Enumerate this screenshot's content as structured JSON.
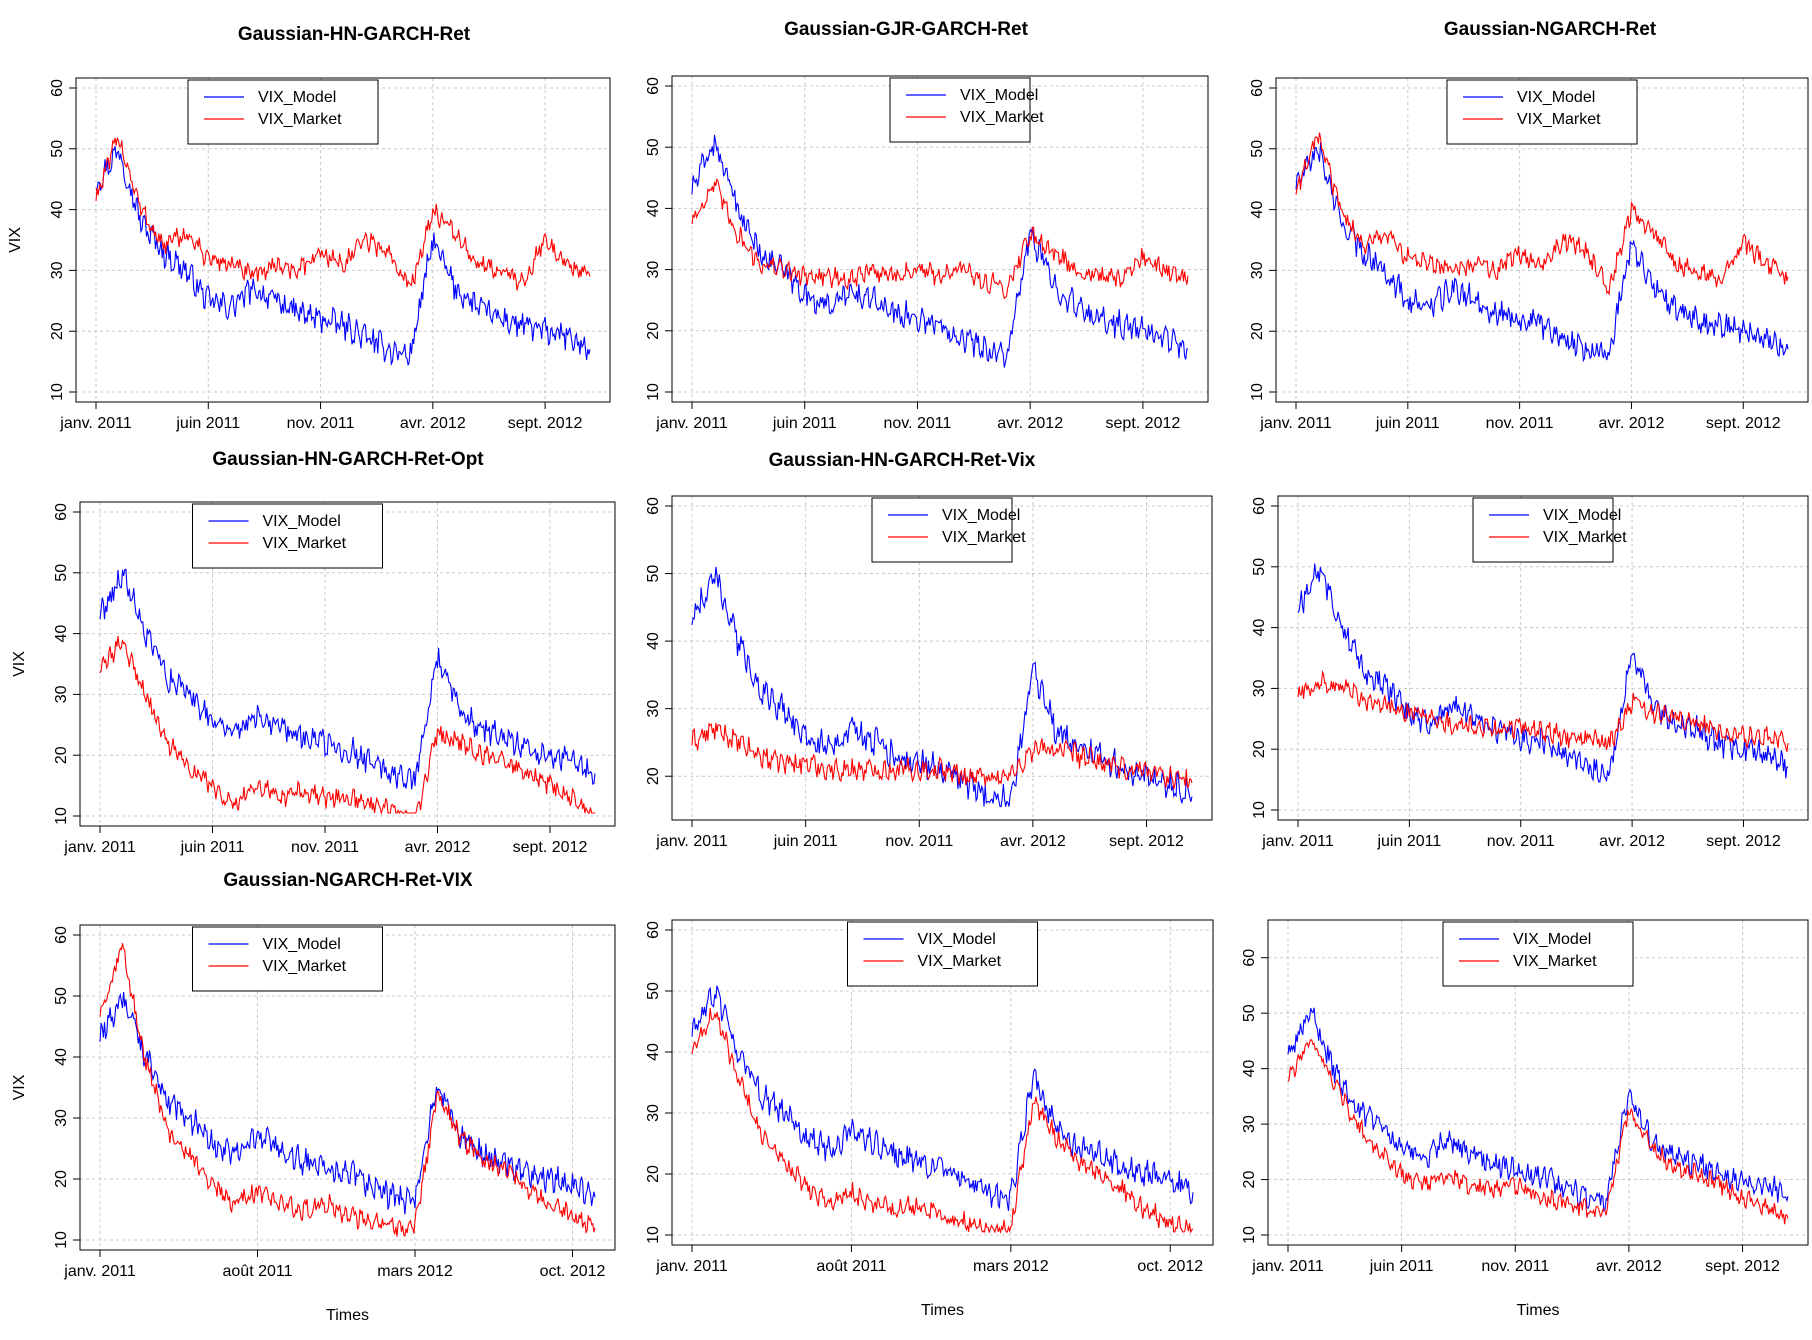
{
  "colors": {
    "model": "#0000ff",
    "market": "#ff0000",
    "grid": "#c8c8c8",
    "axis": "#000000"
  },
  "legend_labels": [
    "VIX_Model",
    "VIX_Market"
  ],
  "chart_data": [
    {
      "type": "line",
      "title": "Gaussian-HN-GARCH-Ret",
      "ylabel": "VIX",
      "xlabel": "",
      "ylim": [
        10,
        60
      ],
      "yticks": [
        10,
        20,
        30,
        40,
        50,
        60
      ],
      "xticks": [
        "janv. 2011",
        "juin 2011",
        "nov. 2011",
        "avr. 2012",
        "sept. 2012"
      ],
      "legend": "top-center",
      "grid": true,
      "x": [
        "janv. 2011",
        "févr. 2011",
        "mars 2011",
        "avr. 2011",
        "mai 2011",
        "juin 2011",
        "juil. 2011",
        "août 2011",
        "sept. 2011",
        "oct. 2011",
        "nov. 2011",
        "déc. 2011",
        "janv. 2012",
        "févr. 2012",
        "mars 2012",
        "avr. 2012",
        "mai 2012",
        "juin 2012",
        "juil. 2012",
        "août 2012",
        "sept. 2012",
        "oct. 2012",
        "nov. 2012"
      ],
      "series": [
        {
          "name": "VIX_Model",
          "values": [
            44,
            50,
            38,
            33,
            30,
            25,
            24,
            27,
            25,
            23,
            22,
            21,
            19,
            17,
            16,
            35,
            27,
            24,
            22,
            21,
            20,
            19,
            17
          ]
        },
        {
          "name": "VIX_Market",
          "values": [
            42,
            52,
            40,
            34,
            36,
            32,
            31,
            29,
            31,
            30,
            33,
            31,
            35,
            33,
            27,
            40,
            36,
            31,
            30,
            28,
            35,
            31,
            29
          ]
        }
      ]
    },
    {
      "type": "line",
      "title": "Gaussian-GJR-GARCH-Ret",
      "ylabel": "",
      "xlabel": "",
      "ylim": [
        10,
        60
      ],
      "yticks": [
        10,
        20,
        30,
        40,
        50,
        60
      ],
      "xticks": [
        "janv. 2011",
        "juin 2011",
        "nov. 2011",
        "avr. 2012",
        "sept. 2012"
      ],
      "legend": "top-center",
      "grid": true,
      "x": [
        "janv. 2011",
        "févr. 2011",
        "mars 2011",
        "avr. 2011",
        "mai 2011",
        "juin 2011",
        "juil. 2011",
        "août 2011",
        "sept. 2011",
        "oct. 2011",
        "nov. 2011",
        "déc. 2011",
        "janv. 2012",
        "févr. 2012",
        "mars 2012",
        "avr. 2012",
        "mai 2012",
        "juin 2012",
        "juil. 2012",
        "août 2012",
        "sept. 2012",
        "oct. 2012",
        "nov. 2012"
      ],
      "series": [
        {
          "name": "VIX_Model",
          "values": [
            43,
            51,
            40,
            33,
            30,
            26,
            24,
            26,
            25,
            23,
            22,
            21,
            19,
            17,
            16,
            36,
            28,
            24,
            22,
            21,
            20,
            19,
            17
          ]
        },
        {
          "name": "VIX_Market",
          "values": [
            38,
            44,
            36,
            31,
            30,
            29,
            29,
            28,
            30,
            29,
            30,
            29,
            30,
            28,
            27,
            36,
            33,
            30,
            29,
            28,
            32,
            30,
            29
          ]
        }
      ]
    },
    {
      "type": "line",
      "title": "Gaussian-NGARCH-Ret",
      "ylabel": "",
      "xlabel": "",
      "ylim": [
        10,
        60
      ],
      "yticks": [
        10,
        20,
        30,
        40,
        50,
        60
      ],
      "xticks": [
        "janv. 2011",
        "juin 2011",
        "nov. 2011",
        "avr. 2012",
        "sept. 2012"
      ],
      "legend": "top-center",
      "grid": true,
      "x": [
        "janv. 2011",
        "févr. 2011",
        "mars 2011",
        "avr. 2011",
        "mai 2011",
        "juin 2011",
        "juil. 2011",
        "août 2011",
        "sept. 2011",
        "oct. 2011",
        "nov. 2011",
        "déc. 2011",
        "janv. 2012",
        "févr. 2012",
        "mars 2012",
        "avr. 2012",
        "mai 2012",
        "juin 2012",
        "juil. 2012",
        "août 2012",
        "sept. 2012",
        "oct. 2012",
        "nov. 2012"
      ],
      "series": [
        {
          "name": "VIX_Model",
          "values": [
            44,
            50,
            38,
            33,
            30,
            25,
            24,
            27,
            25,
            23,
            22,
            21,
            19,
            17,
            16,
            35,
            27,
            24,
            22,
            21,
            20,
            19,
            17
          ]
        },
        {
          "name": "VIX_Market",
          "values": [
            43,
            52,
            40,
            34,
            36,
            32,
            31,
            30,
            31,
            30,
            33,
            31,
            35,
            33,
            27,
            40,
            36,
            31,
            30,
            28,
            35,
            31,
            29
          ]
        }
      ]
    },
    {
      "type": "line",
      "title": "Gaussian-HN-GARCH-Ret-Opt",
      "ylabel": "VIX",
      "xlabel": "",
      "ylim": [
        10,
        60
      ],
      "yticks": [
        10,
        20,
        30,
        40,
        50,
        60
      ],
      "xticks": [
        "janv. 2011",
        "juin 2011",
        "nov. 2011",
        "avr. 2012",
        "sept. 2012"
      ],
      "legend": "top-center",
      "grid": true,
      "x": [
        "janv. 2011",
        "févr. 2011",
        "mars 2011",
        "avr. 2011",
        "mai 2011",
        "juin 2011",
        "juil. 2011",
        "août 2011",
        "sept. 2011",
        "oct. 2011",
        "nov. 2011",
        "déc. 2011",
        "janv. 2012",
        "févr. 2012",
        "mars 2012",
        "avr. 2012",
        "mai 2012",
        "juin 2012",
        "juil. 2012",
        "août 2012",
        "sept. 2012",
        "oct. 2012",
        "nov. 2012"
      ],
      "series": [
        {
          "name": "VIX_Model",
          "values": [
            43,
            50,
            40,
            33,
            30,
            26,
            24,
            27,
            25,
            23,
            22,
            21,
            19,
            17,
            16,
            36,
            27,
            24,
            23,
            21,
            20,
            19,
            17
          ]
        },
        {
          "name": "VIX_Market",
          "values": [
            34,
            39,
            30,
            22,
            18,
            15,
            12,
            15,
            13,
            14,
            13,
            13,
            12,
            11,
            9,
            24,
            22,
            20,
            19,
            17,
            15,
            13,
            10
          ]
        }
      ]
    },
    {
      "type": "line",
      "title": "Gaussian-HN-GARCH-Ret-Vix",
      "ylabel": "",
      "xlabel": "",
      "ylim": [
        15,
        60
      ],
      "yticks": [
        20,
        30,
        40,
        50,
        60
      ],
      "xticks": [
        "janv. 2011",
        "juin 2011",
        "nov. 2011",
        "avr. 2012",
        "sept. 2012"
      ],
      "legend": "top-center",
      "grid": true,
      "x": [
        "janv. 2011",
        "févr. 2011",
        "mars 2011",
        "avr. 2011",
        "mai 2011",
        "juin 2011",
        "juil. 2011",
        "août 2011",
        "sept. 2011",
        "oct. 2011",
        "nov. 2011",
        "déc. 2011",
        "janv. 2012",
        "févr. 2012",
        "mars 2012",
        "avr. 2012",
        "mai 2012",
        "juin 2012",
        "juil. 2012",
        "août 2012",
        "sept. 2012",
        "oct. 2012",
        "nov. 2012"
      ],
      "series": [
        {
          "name": "VIX_Model",
          "values": [
            43,
            50,
            40,
            33,
            30,
            26,
            24,
            27,
            25,
            23,
            22,
            21,
            19,
            17,
            16,
            36,
            27,
            24,
            23,
            21,
            20,
            19,
            17
          ]
        },
        {
          "name": "VIX_Market",
          "values": [
            25,
            27,
            25,
            23,
            22,
            22,
            21,
            21,
            21,
            21,
            21,
            21,
            20,
            20,
            20,
            24,
            24,
            23,
            22,
            21,
            21,
            20,
            19
          ]
        }
      ]
    },
    {
      "type": "line",
      "title": "",
      "ylabel": "",
      "xlabel": "",
      "ylim": [
        10,
        60
      ],
      "yticks": [
        10,
        20,
        30,
        40,
        50,
        60
      ],
      "xticks": [
        "janv. 2011",
        "juin 2011",
        "nov. 2011",
        "avr. 2012",
        "sept. 2012"
      ],
      "legend": "top-center",
      "grid": true,
      "x": [
        "janv. 2011",
        "févr. 2011",
        "mars 2011",
        "avr. 2011",
        "mai 2011",
        "juin 2011",
        "juil. 2011",
        "août 2011",
        "sept. 2011",
        "oct. 2011",
        "nov. 2011",
        "déc. 2011",
        "janv. 2012",
        "févr. 2012",
        "mars 2012",
        "avr. 2012",
        "mai 2012",
        "juin 2012",
        "juil. 2012",
        "août 2012",
        "sept. 2012",
        "oct. 2012",
        "nov. 2012"
      ],
      "series": [
        {
          "name": "VIX_Model",
          "values": [
            43,
            50,
            40,
            33,
            30,
            26,
            24,
            27,
            25,
            23,
            22,
            21,
            19,
            17,
            16,
            36,
            27,
            24,
            23,
            21,
            20,
            19,
            17
          ]
        },
        {
          "name": "VIX_Market",
          "values": [
            29,
            31,
            30,
            28,
            27,
            26,
            25,
            24,
            24,
            23,
            24,
            23,
            22,
            22,
            21,
            28,
            26,
            25,
            24,
            23,
            22,
            22,
            21
          ]
        }
      ]
    },
    {
      "type": "line",
      "title": "Gaussian-NGARCH-Ret-VIX",
      "ylabel": "VIX",
      "xlabel": "Times",
      "ylim": [
        10,
        60
      ],
      "yticks": [
        10,
        20,
        30,
        40,
        50,
        60
      ],
      "xticks": [
        "janv. 2011",
        "août 2011",
        "mars 2012",
        "oct. 2012"
      ],
      "legend": "top-center",
      "grid": true,
      "x": [
        "janv. 2011",
        "févr. 2011",
        "mars 2011",
        "avr. 2011",
        "mai 2011",
        "juin 2011",
        "juil. 2011",
        "août 2011",
        "sept. 2011",
        "oct. 2011",
        "nov. 2011",
        "déc. 2011",
        "janv. 2012",
        "févr. 2012",
        "mars 2012",
        "avr. 2012",
        "mai 2012",
        "juin 2012",
        "juil. 2012",
        "août 2012",
        "sept. 2012",
        "oct. 2012",
        "nov. 2012"
      ],
      "series": [
        {
          "name": "VIX_Model",
          "values": [
            43,
            50,
            40,
            33,
            30,
            26,
            24,
            27,
            25,
            23,
            22,
            21,
            19,
            17,
            16,
            36,
            27,
            24,
            23,
            21,
            20,
            19,
            17
          ]
        },
        {
          "name": "VIX_Market",
          "values": [
            47,
            58,
            40,
            28,
            24,
            19,
            16,
            18,
            16,
            15,
            16,
            14,
            13,
            12,
            12,
            34,
            27,
            23,
            22,
            18,
            16,
            14,
            12
          ]
        }
      ]
    },
    {
      "type": "line",
      "title": "",
      "ylabel": "",
      "xlabel": "Times",
      "ylim": [
        10,
        60
      ],
      "yticks": [
        10,
        20,
        30,
        40,
        50,
        60
      ],
      "xticks": [
        "janv. 2011",
        "août 2011",
        "mars 2012",
        "oct. 2012"
      ],
      "legend": "top-center",
      "grid": true,
      "x": [
        "janv. 2011",
        "févr. 2011",
        "mars 2011",
        "avr. 2011",
        "mai 2011",
        "juin 2011",
        "juil. 2011",
        "août 2011",
        "sept. 2011",
        "oct. 2011",
        "nov. 2011",
        "déc. 2011",
        "janv. 2012",
        "févr. 2012",
        "mars 2012",
        "avr. 2012",
        "mai 2012",
        "juin 2012",
        "juil. 2012",
        "août 2012",
        "sept. 2012",
        "oct. 2012",
        "nov. 2012"
      ],
      "series": [
        {
          "name": "VIX_Model",
          "values": [
            43,
            50,
            40,
            33,
            30,
            26,
            24,
            27,
            25,
            23,
            22,
            21,
            19,
            17,
            16,
            36,
            27,
            24,
            23,
            21,
            20,
            19,
            17
          ]
        },
        {
          "name": "VIX_Market",
          "values": [
            40,
            47,
            36,
            27,
            22,
            18,
            15,
            17,
            15,
            14,
            15,
            13,
            12,
            11,
            11,
            32,
            26,
            22,
            20,
            17,
            14,
            12,
            11
          ]
        }
      ]
    },
    {
      "type": "line",
      "title": "",
      "ylabel": "",
      "xlabel": "Times",
      "ylim": [
        10,
        65
      ],
      "yticks": [
        10,
        20,
        30,
        40,
        50,
        60
      ],
      "xticks": [
        "janv. 2011",
        "juin 2011",
        "nov. 2011",
        "avr. 2012",
        "sept. 2012"
      ],
      "legend": "top-center",
      "grid": true,
      "x": [
        "janv. 2011",
        "févr. 2011",
        "mars 2011",
        "avr. 2011",
        "mai 2011",
        "juin 2011",
        "juil. 2011",
        "août 2011",
        "sept. 2011",
        "oct. 2011",
        "nov. 2011",
        "déc. 2011",
        "janv. 2012",
        "févr. 2012",
        "mars 2012",
        "avr. 2012",
        "mai 2012",
        "juin 2012",
        "juil. 2012",
        "août 2012",
        "sept. 2012",
        "oct. 2012",
        "nov. 2012"
      ],
      "series": [
        {
          "name": "VIX_Model",
          "values": [
            43,
            50,
            40,
            33,
            30,
            26,
            24,
            27,
            25,
            23,
            22,
            21,
            19,
            17,
            16,
            36,
            27,
            24,
            23,
            21,
            20,
            19,
            17
          ]
        },
        {
          "name": "VIX_Market",
          "values": [
            38,
            45,
            38,
            30,
            25,
            21,
            19,
            21,
            19,
            18,
            19,
            17,
            16,
            15,
            14,
            33,
            26,
            22,
            21,
            19,
            17,
            15,
            13
          ]
        }
      ]
    }
  ]
}
